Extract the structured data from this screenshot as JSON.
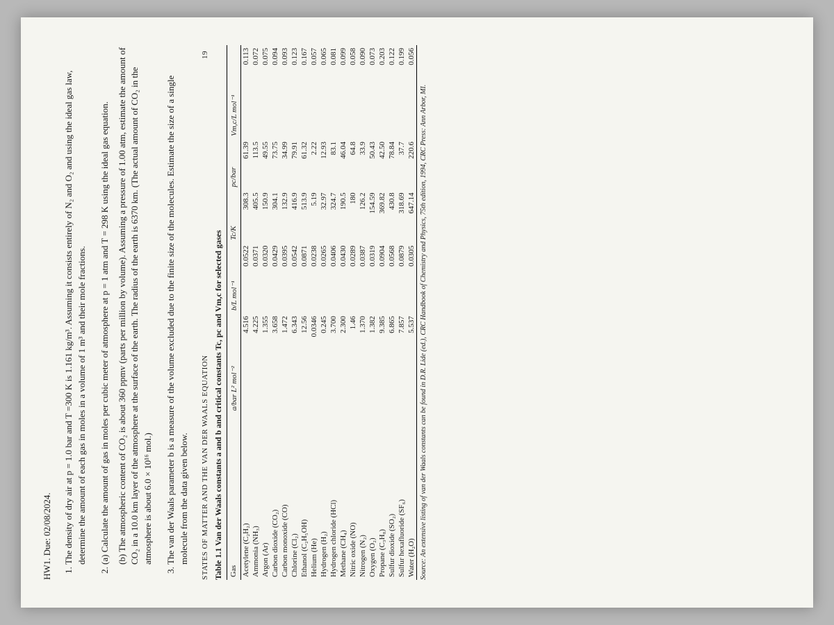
{
  "header": "HW1.   Due: 02/08/2024.",
  "problems": {
    "p1": "The density of dry air at p = 1.0 bar and T =300 K is 1.161 kg/m³. Assuming it consists entirely of N₂ and O₂ and using the ideal gas law, determine the amount of each gas in moles in a volume of 1 m³ and their mole fractions.",
    "p2a": "(a) Calculate the amount of gas in moles per cubic meter of atmosphere at p = 1 atm and T = 298 K using the ideal gas equation.",
    "p2b": "(b) The atmospheric content of CO₂ is about 360 ppmv (parts per million by volume). Assuming a pressure of 1.00 atm, estimate the amount of CO₂ in a 10.0 km layer of the atmosphere at the surface of the earth. The radius of the earth is 6370 km. (The actual amount of CO₂ in the atmosphere is about 6.0 × 10¹⁶ mol.)",
    "p3": "The van der Waals parameter b is a measure of the volume excluded due to the finite size of the molecules. Estimate the size of a single molecule from the data given below."
  },
  "section_title": "STATES OF MATTER AND THE VAN DER WAALS EQUATION",
  "page_number": "19",
  "table": {
    "caption": "Table 1.1   Van der Waals constants a and b and critical constants Tc, pc and Vm,c for selected gases",
    "columns": [
      "Gas",
      "a/bar L² mol⁻²",
      "b/L mol⁻¹",
      "Tc/K",
      "pc/bar",
      "Vm,c/L mol⁻¹"
    ],
    "rows": [
      [
        "Acetylene (C₂H₂)",
        "4.516",
        "0.0522",
        "308.3",
        "61.39",
        "0.113"
      ],
      [
        "Ammonia (NH₃)",
        "4.225",
        "0.0371",
        "405.5",
        "113.5",
        "0.072"
      ],
      [
        "Argon (Ar)",
        "1.355",
        "0.0320",
        "150.9",
        "49.55",
        "0.075"
      ],
      [
        "Carbon dioxide (CO₂)",
        "3.658",
        "0.0429",
        "304.1",
        "73.75",
        "0.094"
      ],
      [
        "Carbon monoxide (CO)",
        "1.472",
        "0.0395",
        "132.9",
        "34.99",
        "0.093"
      ],
      [
        "Chlorine (Cl₂)",
        "6.343",
        "0.0542",
        "416.9",
        "79.91",
        "0.123"
      ],
      [
        "Ethanol (C₂H₅OH)",
        "12.56",
        "0.0871",
        "513.9",
        "61.32",
        "0.167"
      ],
      [
        "Helium (He)",
        "0.0346",
        "0.0238",
        "5.19",
        "2.22",
        "0.057"
      ],
      [
        "Hydrogen (H₂)",
        "0.245",
        "0.0265",
        "32.97",
        "12.93",
        "0.065"
      ],
      [
        "Hydrogen chloride (HCl)",
        "3.700",
        "0.0406",
        "324.7",
        "83.1",
        "0.081"
      ],
      [
        "Methane (CH₄)",
        "2.300",
        "0.0430",
        "190.5",
        "46.04",
        "0.099"
      ],
      [
        "Nitric oxide (NO)",
        "1.46",
        "0.0289",
        "180",
        "64.8",
        "0.058"
      ],
      [
        "Nitrogen (N₂)",
        "1.370",
        "0.0387",
        "126.2",
        "33.9",
        "0.090"
      ],
      [
        "Oxygen (O₂)",
        "1.382",
        "0.0319",
        "154.59",
        "50.43",
        "0.073"
      ],
      [
        "Propane (C₃H₈)",
        "9.385",
        "0.0904",
        "369.82",
        "42.50",
        "0.203"
      ],
      [
        "Sulfur dioxide (SO₂)",
        "6.865",
        "0.0568",
        "430.8",
        "78.84",
        "0.122"
      ],
      [
        "Sulfur hexafluoride (SF₆)",
        "7.857",
        "0.0879",
        "318.69",
        "37.7",
        "0.199"
      ],
      [
        "Water (H₂O)",
        "5.537",
        "0.0305",
        "647.14",
        "220.6",
        "0.056"
      ]
    ],
    "source": "Source: An extensive listing of van der Waals constants can be found in D.R. Lide (ed.), CRC Handbook of Chemistry and Physics, 75th edition, 1994, CRC Press: Ann Arbor, MI."
  }
}
